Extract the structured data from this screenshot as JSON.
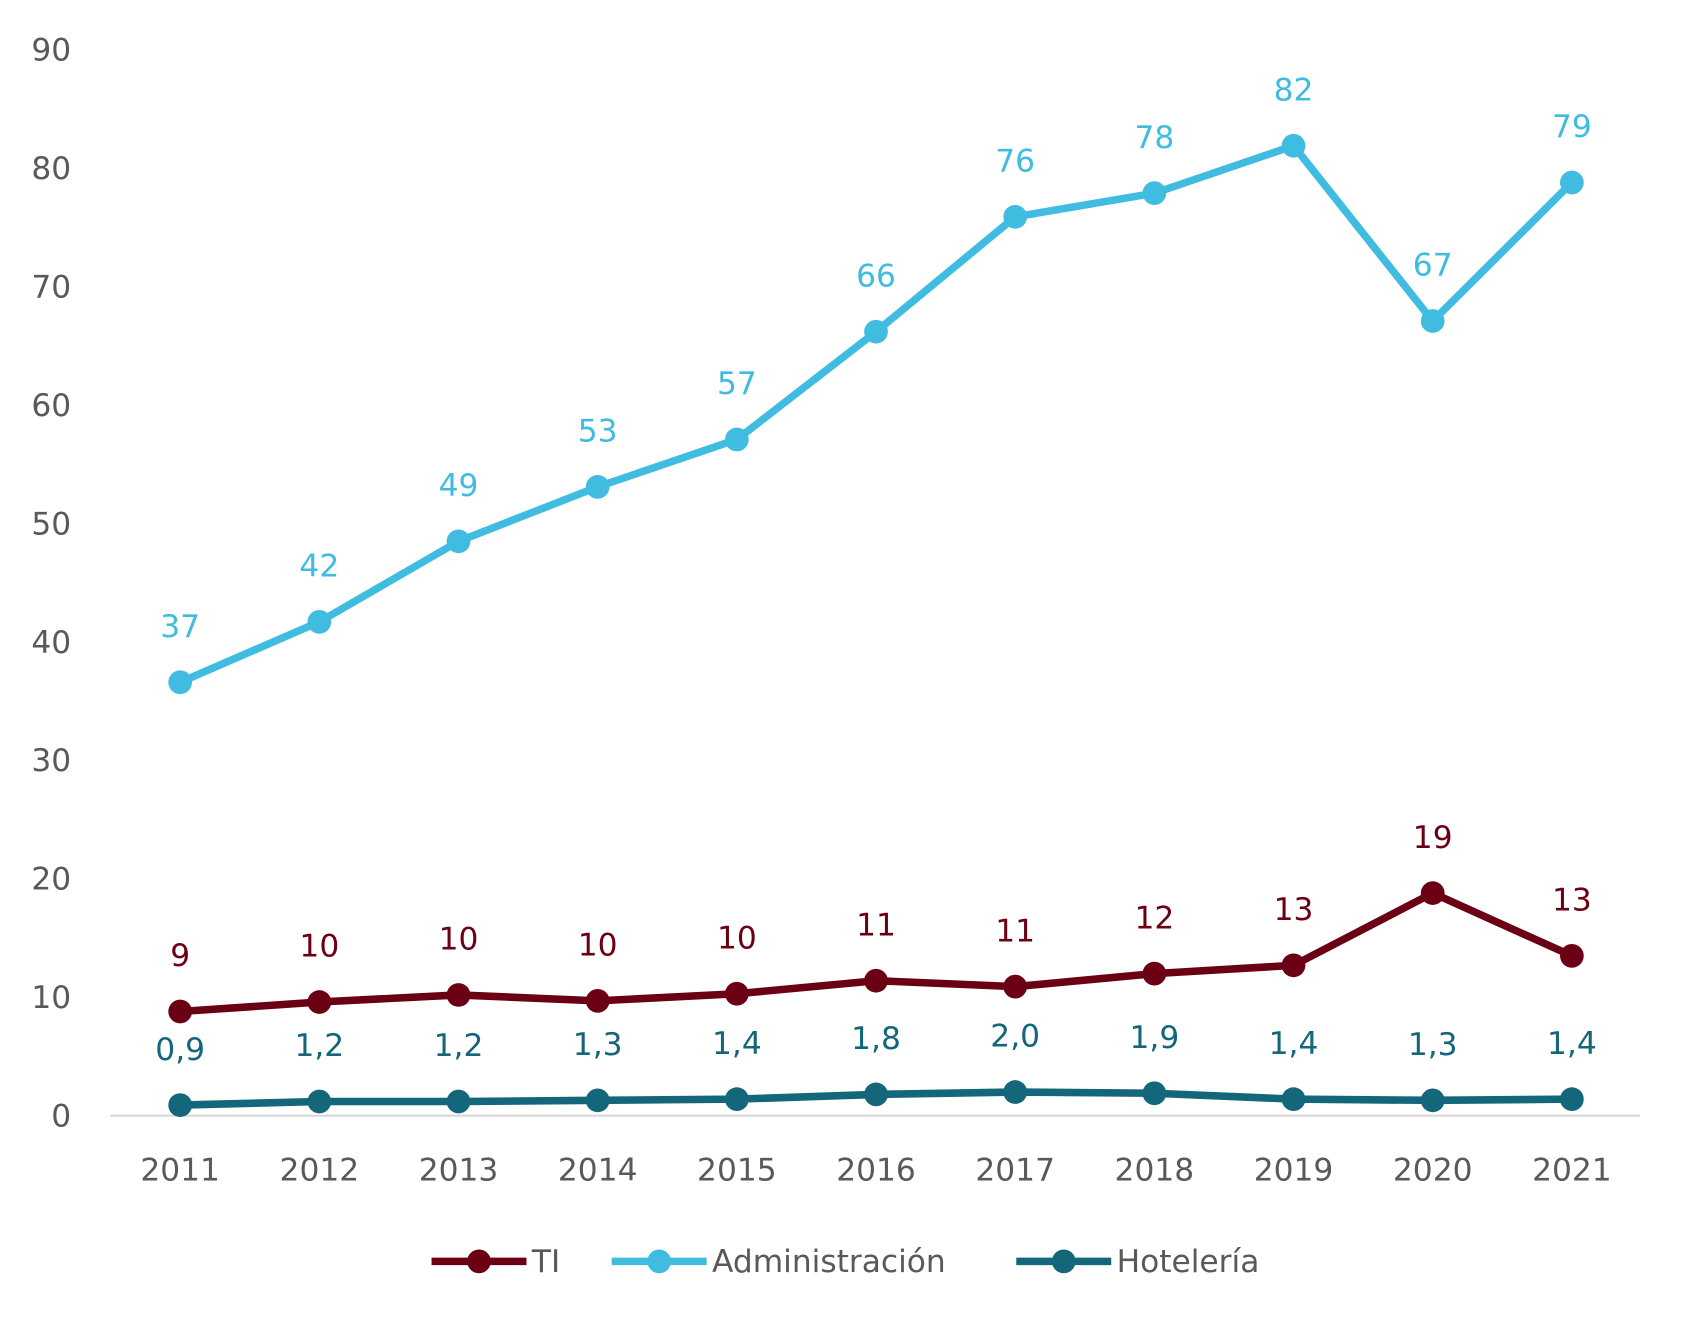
{
  "chart_data": {
    "type": "line",
    "title": "",
    "xlabel": "",
    "ylabel": "",
    "categories": [
      "2011",
      "2012",
      "2013",
      "2014",
      "2015",
      "2016",
      "2017",
      "2018",
      "2019",
      "2020",
      "2021"
    ],
    "ylim": [
      0,
      90
    ],
    "yticks": [
      "0",
      "10",
      "20",
      "30",
      "40",
      "50",
      "60",
      "70",
      "80",
      "90"
    ],
    "grid": false,
    "legend_position": "bottom",
    "series": [
      {
        "name": "TI",
        "color": "#6B0014",
        "values": [
          8.8,
          9.6,
          10.2,
          9.7,
          10.3,
          11.4,
          10.9,
          12.0,
          12.7,
          18.8,
          13.5
        ],
        "labels": [
          "9",
          "10",
          "10",
          "10",
          "10",
          "11",
          "11",
          "12",
          "13",
          "19",
          "13"
        ]
      },
      {
        "name": "Administración",
        "color": "#41BCE1",
        "values": [
          36.6,
          41.7,
          48.5,
          53.1,
          57.1,
          66.2,
          75.9,
          77.9,
          81.9,
          67.1,
          78.8
        ],
        "labels": [
          "37",
          "42",
          "49",
          "53",
          "57",
          "66",
          "76",
          "78",
          "82",
          "67",
          "79"
        ]
      },
      {
        "name": "Hotelería",
        "color": "#14667A",
        "values": [
          0.9,
          1.2,
          1.2,
          1.3,
          1.4,
          1.8,
          2.0,
          1.9,
          1.4,
          1.3,
          1.4
        ],
        "labels": [
          "0,9",
          "1,2",
          "1,2",
          "1,3",
          "1,4",
          "1,8",
          "2,0",
          "1,9",
          "1,4",
          "1,3",
          "1,4"
        ]
      }
    ]
  }
}
